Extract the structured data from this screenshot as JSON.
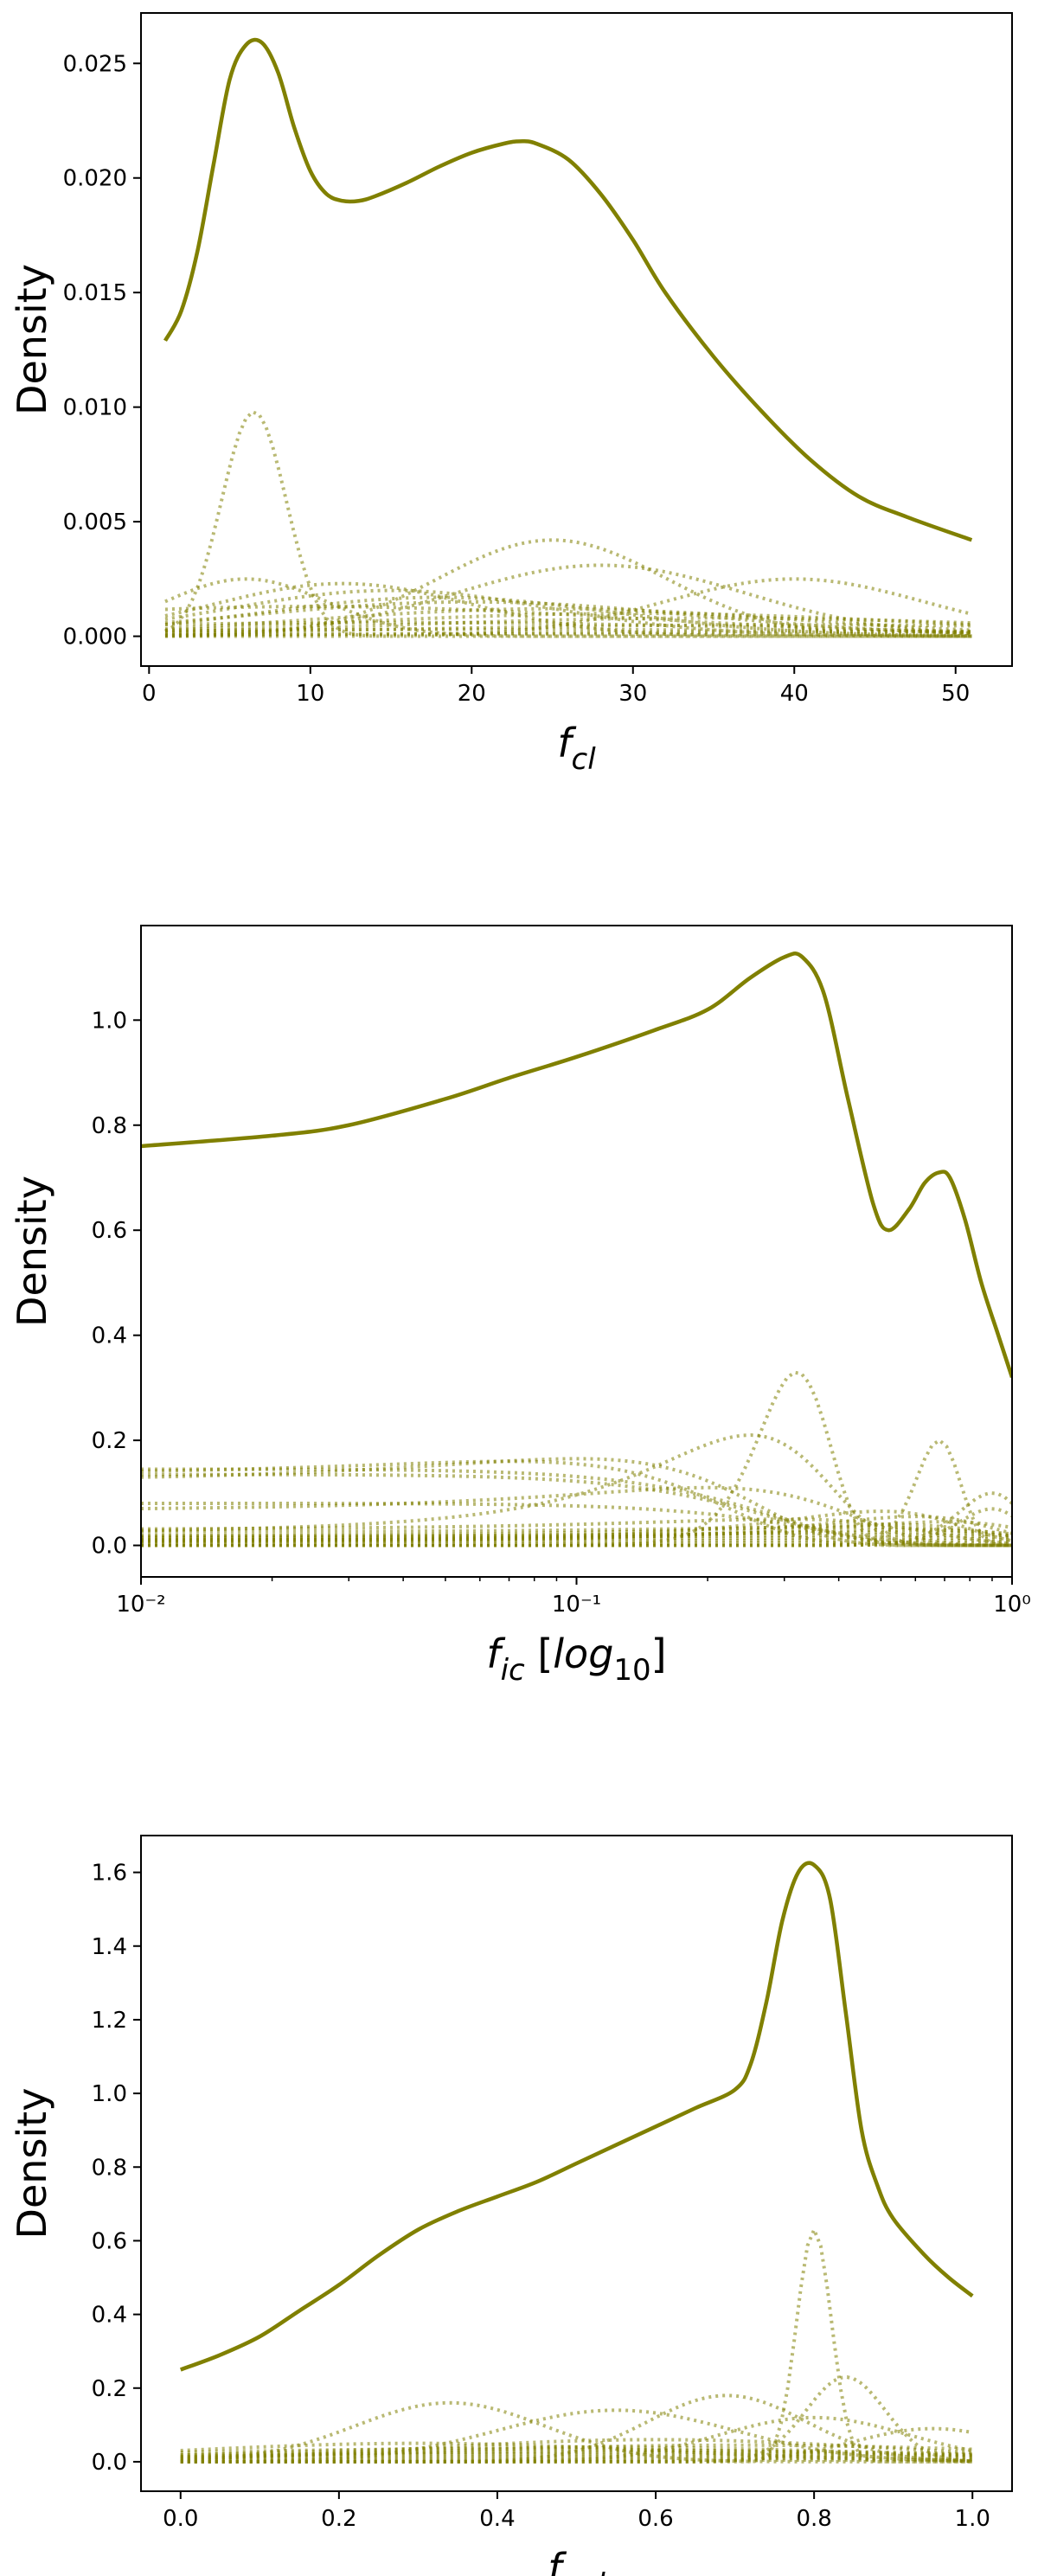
{
  "colors": {
    "line": "#808000",
    "frame": "#000000",
    "background": "#ffffff"
  },
  "chart_data": [
    {
      "type": "line",
      "title": "",
      "ylabel": "Density",
      "xlabel_main": "f",
      "xlabel_sub": "cl",
      "xlabel_suffix": "",
      "x_scale": "linear",
      "xlim": [
        -0.5,
        53.5
      ],
      "ylim": [
        -0.0013,
        0.0272
      ],
      "xticks": [
        0,
        10,
        20,
        30,
        40,
        50
      ],
      "xtick_labels": [
        "0",
        "10",
        "20",
        "30",
        "40",
        "50"
      ],
      "yticks": [
        0,
        0.005,
        0.01,
        0.015,
        0.02,
        0.025
      ],
      "ytick_labels": [
        "0.000",
        "0.005",
        "0.010",
        "0.015",
        "0.020",
        "0.025"
      ],
      "grid": false,
      "x_range": [
        1,
        51
      ],
      "total": {
        "x": [
          1,
          2,
          3,
          4,
          5,
          6,
          7,
          8,
          9,
          10,
          11,
          12,
          13,
          14,
          16,
          18,
          20,
          22,
          23,
          24,
          26,
          28,
          30,
          32,
          35,
          38,
          41,
          44,
          47,
          51
        ],
        "y": [
          0.0129,
          0.0142,
          0.0168,
          0.0206,
          0.0243,
          0.0258,
          0.0259,
          0.0246,
          0.0222,
          0.0203,
          0.0193,
          0.019,
          0.019,
          0.0192,
          0.0198,
          0.0205,
          0.0211,
          0.0215,
          0.0216,
          0.0215,
          0.0208,
          0.0193,
          0.0173,
          0.015,
          0.0122,
          0.0098,
          0.0077,
          0.0061,
          0.0052,
          0.0042
        ]
      },
      "components": [
        {
          "mu": 6.5,
          "sigma": 2.0,
          "peak": 0.0098
        },
        {
          "mu": 25,
          "sigma": 7,
          "peak": 0.0042
        },
        {
          "mu": 28,
          "sigma": 9,
          "peak": 0.0031
        },
        {
          "mu": 40,
          "sigma": 8,
          "peak": 0.0025
        },
        {
          "mu": 6,
          "sigma": 5,
          "peak": 0.0025
        },
        {
          "mu": 12,
          "sigma": 8,
          "peak": 0.0023
        },
        {
          "mu": 15,
          "sigma": 10,
          "peak": 0.002
        },
        {
          "mu": 18,
          "sigma": 11,
          "peak": 0.0017
        },
        {
          "mu": 20,
          "sigma": 14,
          "peak": 0.0015
        },
        {
          "mu": 25,
          "sigma": 15,
          "peak": 0.0012
        },
        {
          "mu": 30,
          "sigma": 18,
          "peak": 0.001
        },
        {
          "mu": 10,
          "sigma": 20,
          "peak": 0.0013
        },
        {
          "mu": 35,
          "sigma": 20,
          "peak": 0.0008
        },
        {
          "mu": 15,
          "sigma": 25,
          "peak": 0.0006
        },
        {
          "mu": 40,
          "sigma": 25,
          "peak": 0.0005
        },
        {
          "mu": 20,
          "sigma": 30,
          "peak": 0.0003
        },
        {
          "mu": 45,
          "sigma": 25,
          "peak": 0.0002
        },
        {
          "mu": 25,
          "sigma": 30,
          "peak": 0.0001
        }
      ]
    },
    {
      "type": "line",
      "title": "",
      "ylabel": "Density",
      "xlabel_main": "f",
      "xlabel_sub": "ic",
      "xlabel_suffix": "[log10]",
      "x_scale": "log",
      "xlim": [
        0.01,
        1
      ],
      "ylim": [
        -0.06,
        1.18
      ],
      "xticks": [
        0.01,
        0.1,
        1
      ],
      "xtick_labels": [
        "10⁻²",
        "10⁻¹",
        "10⁰"
      ],
      "yticks": [
        0,
        0.2,
        0.4,
        0.6,
        0.8,
        1.0
      ],
      "ytick_labels": [
        "0.0",
        "0.2",
        "0.4",
        "0.6",
        "0.8",
        "1.0"
      ],
      "grid": false,
      "x_range": [
        0.01,
        1
      ],
      "total": {
        "x": [
          0.01,
          0.02,
          0.03,
          0.05,
          0.07,
          0.1,
          0.15,
          0.2,
          0.25,
          0.3,
          0.33,
          0.37,
          0.42,
          0.48,
          0.52,
          0.58,
          0.63,
          0.68,
          0.72,
          0.78,
          0.85,
          0.93,
          1.0
        ],
        "y": [
          0.76,
          0.78,
          0.8,
          0.85,
          0.89,
          0.93,
          0.98,
          1.02,
          1.08,
          1.12,
          1.12,
          1.05,
          0.85,
          0.65,
          0.6,
          0.64,
          0.69,
          0.71,
          0.7,
          0.62,
          0.5,
          0.4,
          0.32
        ]
      },
      "components": [
        {
          "mu": 0.32,
          "sigma": 0.06,
          "peak": 0.33
        },
        {
          "mu": 0.25,
          "sigma": 0.12,
          "peak": 0.21
        },
        {
          "mu": 0.68,
          "sigma": 0.08,
          "peak": 0.2
        },
        {
          "mu": 0.07,
          "sigma": 0.12,
          "peak": 0.16
        },
        {
          "mu": 0.1,
          "sigma": 0.13,
          "peak": 0.165
        },
        {
          "mu": 0.01,
          "sigma": 0.2,
          "peak": 0.145
        },
        {
          "mu": 0.01,
          "sigma": 0.2,
          "peak": 0.135
        },
        {
          "mu": 0.2,
          "sigma": 0.2,
          "peak": 0.11
        },
        {
          "mu": 0.9,
          "sigma": 0.15,
          "peak": 0.1
        },
        {
          "mu": 0.01,
          "sigma": 0.25,
          "peak": 0.08
        },
        {
          "mu": 0.5,
          "sigma": 0.25,
          "peak": 0.065
        },
        {
          "mu": 0.9,
          "sigma": 0.15,
          "peak": 0.07
        },
        {
          "mu": 0.6,
          "sigma": 0.3,
          "peak": 0.055
        },
        {
          "mu": 0.3,
          "sigma": 0.3,
          "peak": 0.05
        },
        {
          "mu": 0.7,
          "sigma": 0.4,
          "peak": 0.045
        },
        {
          "mu": 0.5,
          "sigma": 0.4,
          "peak": 0.04
        },
        {
          "mu": 0.4,
          "sigma": 0.5,
          "peak": 0.035
        },
        {
          "mu": 0.6,
          "sigma": 0.5,
          "peak": 0.03
        },
        {
          "mu": 0.5,
          "sigma": 0.6,
          "peak": 0.025
        },
        {
          "mu": 0.5,
          "sigma": 0.6,
          "peak": 0.02
        },
        {
          "mu": 0.5,
          "sigma": 0.6,
          "peak": 0.015
        },
        {
          "mu": 0.5,
          "sigma": 0.6,
          "peak": 0.01
        },
        {
          "mu": 0.5,
          "sigma": 0.6,
          "peak": 0.005
        }
      ]
    },
    {
      "type": "line",
      "title": "",
      "ylabel": "Density",
      "xlabel_main": "f",
      "xlabel_sub": "vel",
      "xlabel_suffix": "",
      "x_scale": "linear",
      "xlim": [
        -0.05,
        1.05
      ],
      "ylim": [
        -0.08,
        1.7
      ],
      "xticks": [
        0.0,
        0.2,
        0.4,
        0.6,
        0.8,
        1.0
      ],
      "xtick_labels": [
        "0.0",
        "0.2",
        "0.4",
        "0.6",
        "0.8",
        "1.0"
      ],
      "yticks": [
        0,
        0.2,
        0.4,
        0.6,
        0.8,
        1.0,
        1.2,
        1.4,
        1.6
      ],
      "ytick_labels": [
        "0.0",
        "0.2",
        "0.4",
        "0.6",
        "0.8",
        "1.0",
        "1.2",
        "1.4",
        "1.6"
      ],
      "grid": false,
      "x_range": [
        0,
        1
      ],
      "total": {
        "x": [
          0.0,
          0.05,
          0.1,
          0.15,
          0.2,
          0.25,
          0.3,
          0.35,
          0.4,
          0.45,
          0.5,
          0.55,
          0.6,
          0.65,
          0.7,
          0.72,
          0.74,
          0.76,
          0.78,
          0.8,
          0.82,
          0.84,
          0.86,
          0.88,
          0.9,
          0.94,
          0.97,
          1.0
        ],
        "y": [
          0.25,
          0.29,
          0.34,
          0.41,
          0.48,
          0.56,
          0.63,
          0.68,
          0.72,
          0.76,
          0.81,
          0.86,
          0.91,
          0.96,
          1.01,
          1.08,
          1.25,
          1.47,
          1.6,
          1.62,
          1.53,
          1.22,
          0.9,
          0.75,
          0.66,
          0.56,
          0.5,
          0.45
        ]
      },
      "components": [
        {
          "mu": 0.8,
          "sigma": 0.022,
          "peak": 0.63
        },
        {
          "mu": 0.84,
          "sigma": 0.05,
          "peak": 0.23
        },
        {
          "mu": 0.69,
          "sigma": 0.1,
          "peak": 0.18
        },
        {
          "mu": 0.34,
          "sigma": 0.12,
          "peak": 0.16
        },
        {
          "mu": 0.55,
          "sigma": 0.15,
          "peak": 0.14
        },
        {
          "mu": 0.8,
          "sigma": 0.12,
          "peak": 0.12
        },
        {
          "mu": 0.95,
          "sigma": 0.1,
          "peak": 0.09
        },
        {
          "mu": 0.6,
          "sigma": 0.3,
          "peak": 0.06
        },
        {
          "mu": 0.3,
          "sigma": 0.3,
          "peak": 0.05
        },
        {
          "mu": 0.7,
          "sigma": 0.4,
          "peak": 0.045
        },
        {
          "mu": 0.5,
          "sigma": 0.4,
          "peak": 0.04
        },
        {
          "mu": 0.4,
          "sigma": 0.5,
          "peak": 0.035
        },
        {
          "mu": 0.6,
          "sigma": 0.5,
          "peak": 0.03
        },
        {
          "mu": 0.5,
          "sigma": 0.6,
          "peak": 0.025
        },
        {
          "mu": 0.5,
          "sigma": 0.6,
          "peak": 0.02
        },
        {
          "mu": 0.5,
          "sigma": 0.6,
          "peak": 0.015
        },
        {
          "mu": 0.5,
          "sigma": 0.6,
          "peak": 0.01
        },
        {
          "mu": 0.5,
          "sigma": 0.6,
          "peak": 0.005
        }
      ]
    }
  ]
}
